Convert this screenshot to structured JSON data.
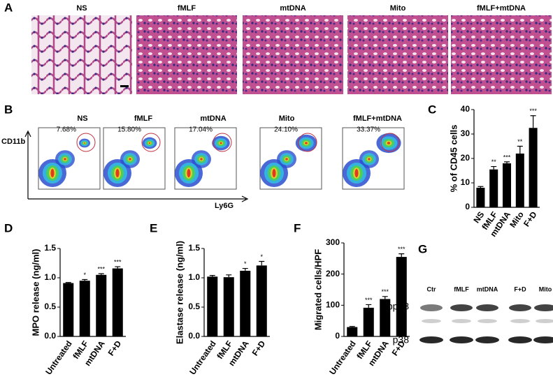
{
  "panel_labels": [
    "A",
    "B",
    "C",
    "D",
    "E",
    "F",
    "G"
  ],
  "histology": {
    "titles": [
      "NS",
      "fMLF",
      "mtDNA",
      "Mito",
      "fMLF+mtDNA"
    ]
  },
  "flow": {
    "titles": [
      "NS",
      "fMLF",
      "mtDNA",
      "Mito",
      "fMLF+mtDNA"
    ],
    "gates": [
      "7.68%",
      "15.80%",
      "17.04%",
      "24.10%",
      "33.37%"
    ],
    "y_label": "CD11b",
    "x_label": "Ly6G"
  },
  "western": {
    "lanes": [
      "Ctr",
      "fMLF",
      "mtDNA",
      "F+D",
      "Mito"
    ],
    "rows": [
      "pp38",
      "p38"
    ]
  },
  "chart_data": [
    {
      "type": "bar",
      "y_label": "% of CD45 cells",
      "categories": [
        "NS",
        "fMLF",
        "mtDNA",
        "Mito",
        "F+D"
      ],
      "values": [
        8,
        15.5,
        18,
        22,
        32.5
      ],
      "errors": [
        0.5,
        1.2,
        0.6,
        3,
        5
      ],
      "annotations": [
        null,
        "**",
        "***",
        "**",
        "***"
      ],
      "color": "#000000",
      "ylim": [
        0,
        40
      ],
      "yticks": [
        0,
        10,
        20,
        30,
        40
      ]
    },
    {
      "type": "bar",
      "y_label": "MPO release (ng/ml)",
      "categories": [
        "Untreated",
        "fMLF",
        "mtDNA",
        "F+D"
      ],
      "values": [
        0.91,
        0.95,
        1.05,
        1.16
      ],
      "errors": [
        0.01,
        0.02,
        0.02,
        0.03
      ],
      "annotations": [
        null,
        "*",
        "***",
        "***"
      ],
      "color": "#000000",
      "ylim": [
        0,
        1.5
      ],
      "yticks": [
        {
          "value": 0,
          "label": "0.0"
        },
        0.5,
        {
          "value": 1,
          "label": "1.0"
        },
        1.5
      ]
    },
    {
      "type": "bar",
      "y_label": "Elastase release (ng/ml)",
      "categories": [
        "Untreated",
        "fMLF",
        "mtDNA",
        "F+D"
      ],
      "values": [
        1.02,
        1.01,
        1.12,
        1.21
      ],
      "errors": [
        0.02,
        0.04,
        0.04,
        0.07
      ],
      "annotations": [
        null,
        null,
        "*",
        "*"
      ],
      "color": "#000000",
      "ylim": [
        0,
        1.5
      ],
      "yticks": [
        {
          "value": 0,
          "label": "0.0"
        },
        0.5,
        {
          "value": 1,
          "label": "1.0"
        },
        1.5
      ]
    },
    {
      "type": "bar",
      "y_label": "Migrated cells/HPF",
      "categories": [
        "Untreated",
        "fMLF",
        "mtDNA",
        "F+D"
      ],
      "values": [
        30,
        92,
        120,
        255
      ],
      "errors": [
        2,
        10,
        8,
        10
      ],
      "annotations": [
        null,
        "***",
        "***",
        "***"
      ],
      "color": "#000000",
      "ylim": [
        0,
        300
      ],
      "yticks": [
        0,
        100,
        200,
        300
      ]
    }
  ]
}
